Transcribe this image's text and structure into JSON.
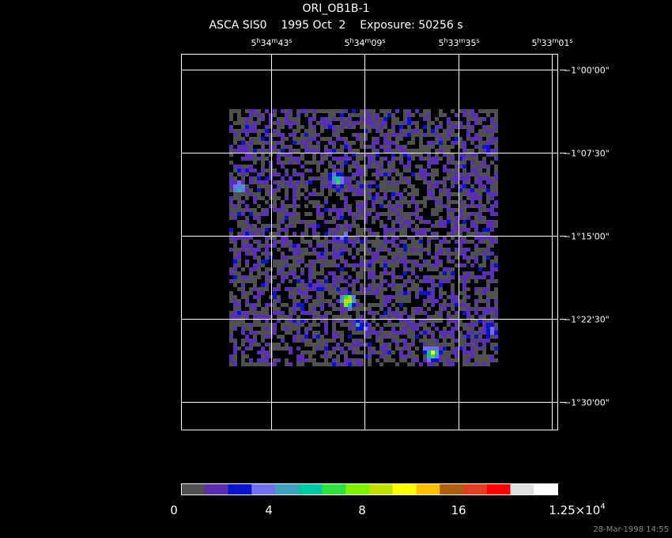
{
  "header": {
    "title": "ORI_OB1B-1",
    "subtitle": "ASCA SIS0    1995 Oct  2    Exposure: 50256 s"
  },
  "ra_labels": [
    [
      "5",
      "h",
      "34",
      "m",
      "43",
      "s"
    ],
    [
      "5",
      "h",
      "34",
      "m",
      "09",
      "s"
    ],
    [
      "5",
      "h",
      "33",
      "m",
      "35",
      "s"
    ],
    [
      "5",
      "h",
      "33",
      "m",
      "01",
      "s"
    ]
  ],
  "dec_labels": [
    "−1°00'00\"",
    "−1°07'30\"",
    "−1°15'00\"",
    "−1°22'30\"",
    "−1°30'00\""
  ],
  "colorbar": {
    "colors": [
      "#505050",
      "#5a30b0",
      "#0a14c8",
      "#7070f0",
      "#40a0c0",
      "#00c8a0",
      "#30e040",
      "#80f000",
      "#c0e000",
      "#ffff00",
      "#ffc000",
      "#b06010",
      "#e04020",
      "#ff0000",
      "#e0e0e0",
      "#ffffff"
    ],
    "labels": [
      "0",
      "4",
      "8",
      "16",
      [
        "1.25×10",
        "4"
      ]
    ]
  },
  "footer": {
    "timestamp": "28-Mar-1998 14:55"
  }
}
